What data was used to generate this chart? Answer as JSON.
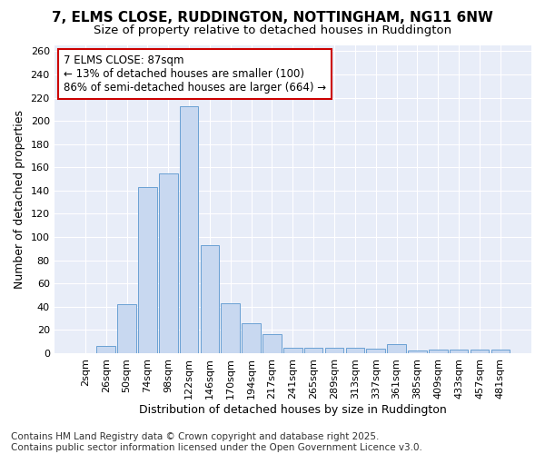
{
  "title_line1": "7, ELMS CLOSE, RUDDINGTON, NOTTINGHAM, NG11 6NW",
  "title_line2": "Size of property relative to detached houses in Ruddington",
  "xlabel": "Distribution of detached houses by size in Ruddington",
  "ylabel": "Number of detached properties",
  "footer_line1": "Contains HM Land Registry data © Crown copyright and database right 2025.",
  "footer_line2": "Contains public sector information licensed under the Open Government Licence v3.0.",
  "categories": [
    "2sqm",
    "26sqm",
    "50sqm",
    "74sqm",
    "98sqm",
    "122sqm",
    "146sqm",
    "170sqm",
    "194sqm",
    "217sqm",
    "241sqm",
    "265sqm",
    "289sqm",
    "313sqm",
    "337sqm",
    "361sqm",
    "385sqm",
    "409sqm",
    "433sqm",
    "457sqm",
    "481sqm"
  ],
  "values": [
    0,
    6,
    42,
    143,
    155,
    213,
    93,
    43,
    26,
    16,
    5,
    5,
    5,
    5,
    4,
    8,
    2,
    3,
    3,
    3,
    3
  ],
  "bar_color": "#c8d8f0",
  "bar_edge_color": "#6aa0d4",
  "annotation_line1": "7 ELMS CLOSE: 87sqm",
  "annotation_line2": "← 13% of detached houses are smaller (100)",
  "annotation_line3": "86% of semi-detached houses are larger (664) →",
  "ylim_max": 265,
  "yticks": [
    0,
    20,
    40,
    60,
    80,
    100,
    120,
    140,
    160,
    180,
    200,
    220,
    240,
    260
  ],
  "fig_bg_color": "#ffffff",
  "axes_bg_color": "#e8edf8",
  "grid_color": "#ffffff",
  "annotation_box_bg": "#ffffff",
  "annotation_box_edge": "#cc0000",
  "title1_fontsize": 11,
  "title2_fontsize": 9.5,
  "axis_label_fontsize": 9,
  "tick_fontsize": 8,
  "annotation_fontsize": 8.5,
  "footer_fontsize": 7.5
}
